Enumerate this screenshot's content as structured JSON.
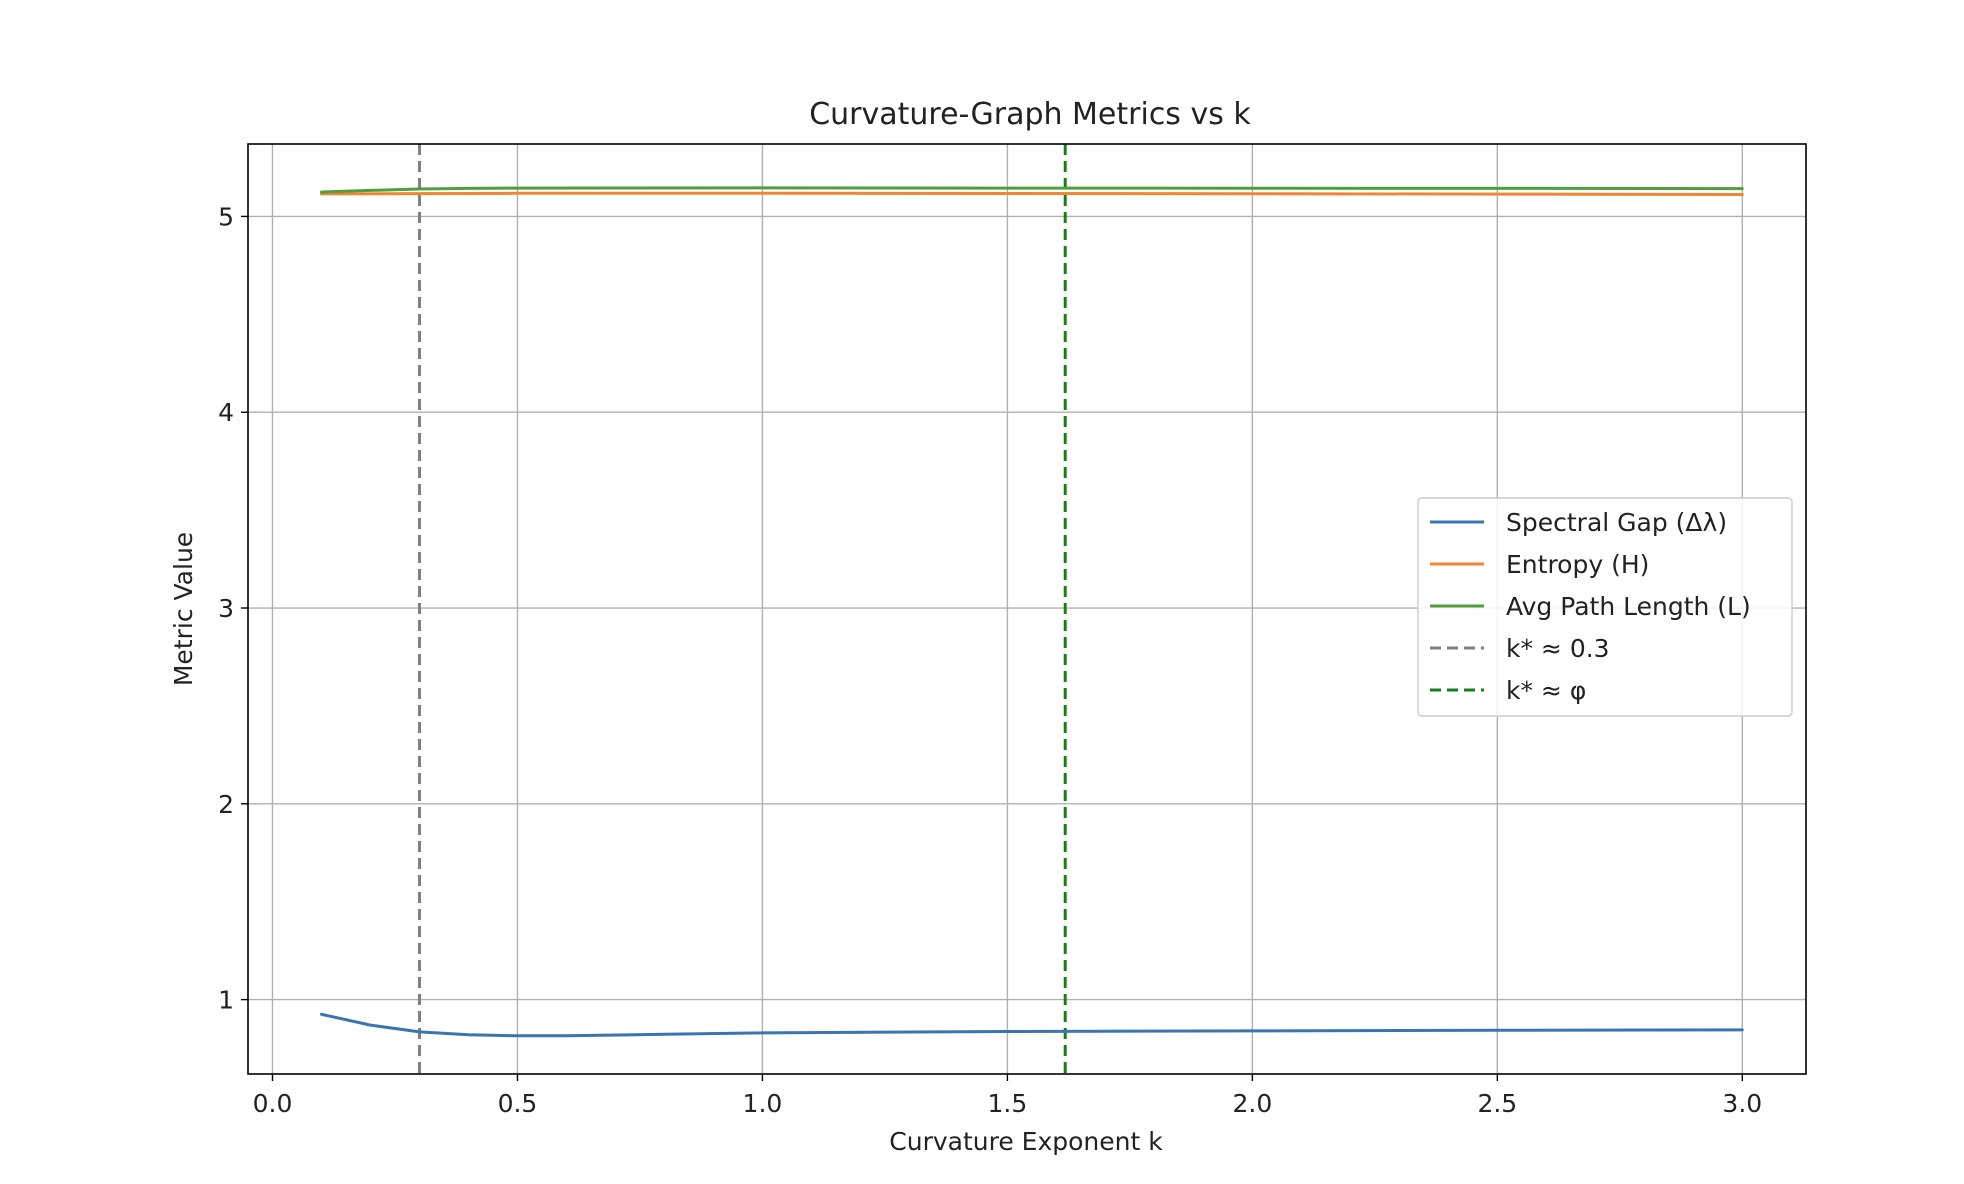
{
  "chart_data": {
    "type": "line",
    "title": "Curvature-Graph Metrics vs k",
    "xlabel": "Curvature Exponent k",
    "ylabel": "Metric Value",
    "xlim": [
      -0.05,
      3.13
    ],
    "ylim": [
      0.62,
      5.37
    ],
    "xticks": [
      "0.0",
      "0.5",
      "1.0",
      "1.5",
      "2.0",
      "2.5",
      "3.0"
    ],
    "yticks": [
      "1",
      "2",
      "3",
      "4",
      "5"
    ],
    "grid": true,
    "legend_position": "center-right",
    "series": [
      {
        "name": "Spectral Gap (Δλ)",
        "color": "#3b75af",
        "style": "solid",
        "x": [
          0.1,
          0.2,
          0.3,
          0.4,
          0.5,
          0.6,
          0.8,
          1.0,
          1.5,
          2.0,
          2.5,
          3.0
        ],
        "y": [
          0.925,
          0.87,
          0.835,
          0.82,
          0.815,
          0.815,
          0.823,
          0.83,
          0.837,
          0.84,
          0.843,
          0.845
        ]
      },
      {
        "name": "Entropy (H)",
        "color": "#ef8636",
        "style": "solid",
        "x": [
          0.1,
          0.5,
          1.0,
          1.5,
          2.0,
          2.5,
          3.0
        ],
        "y": [
          5.115,
          5.118,
          5.118,
          5.117,
          5.116,
          5.114,
          5.112
        ]
      },
      {
        "name": "Avg Path Length (L)",
        "color": "#519e3e",
        "style": "solid",
        "x": [
          0.1,
          0.2,
          0.3,
          0.4,
          0.5,
          1.0,
          1.5,
          2.0,
          2.5,
          3.0
        ],
        "y": [
          5.125,
          5.133,
          5.14,
          5.143,
          5.145,
          5.146,
          5.145,
          5.144,
          5.143,
          5.142
        ]
      }
    ],
    "vlines": [
      {
        "name": "k* ≈ 0.3",
        "x": 0.3,
        "color": "#808080",
        "style": "dashed"
      },
      {
        "name": "k* ≈ φ",
        "x": 1.618,
        "color": "#1a7d1a",
        "style": "dashed"
      }
    ]
  }
}
